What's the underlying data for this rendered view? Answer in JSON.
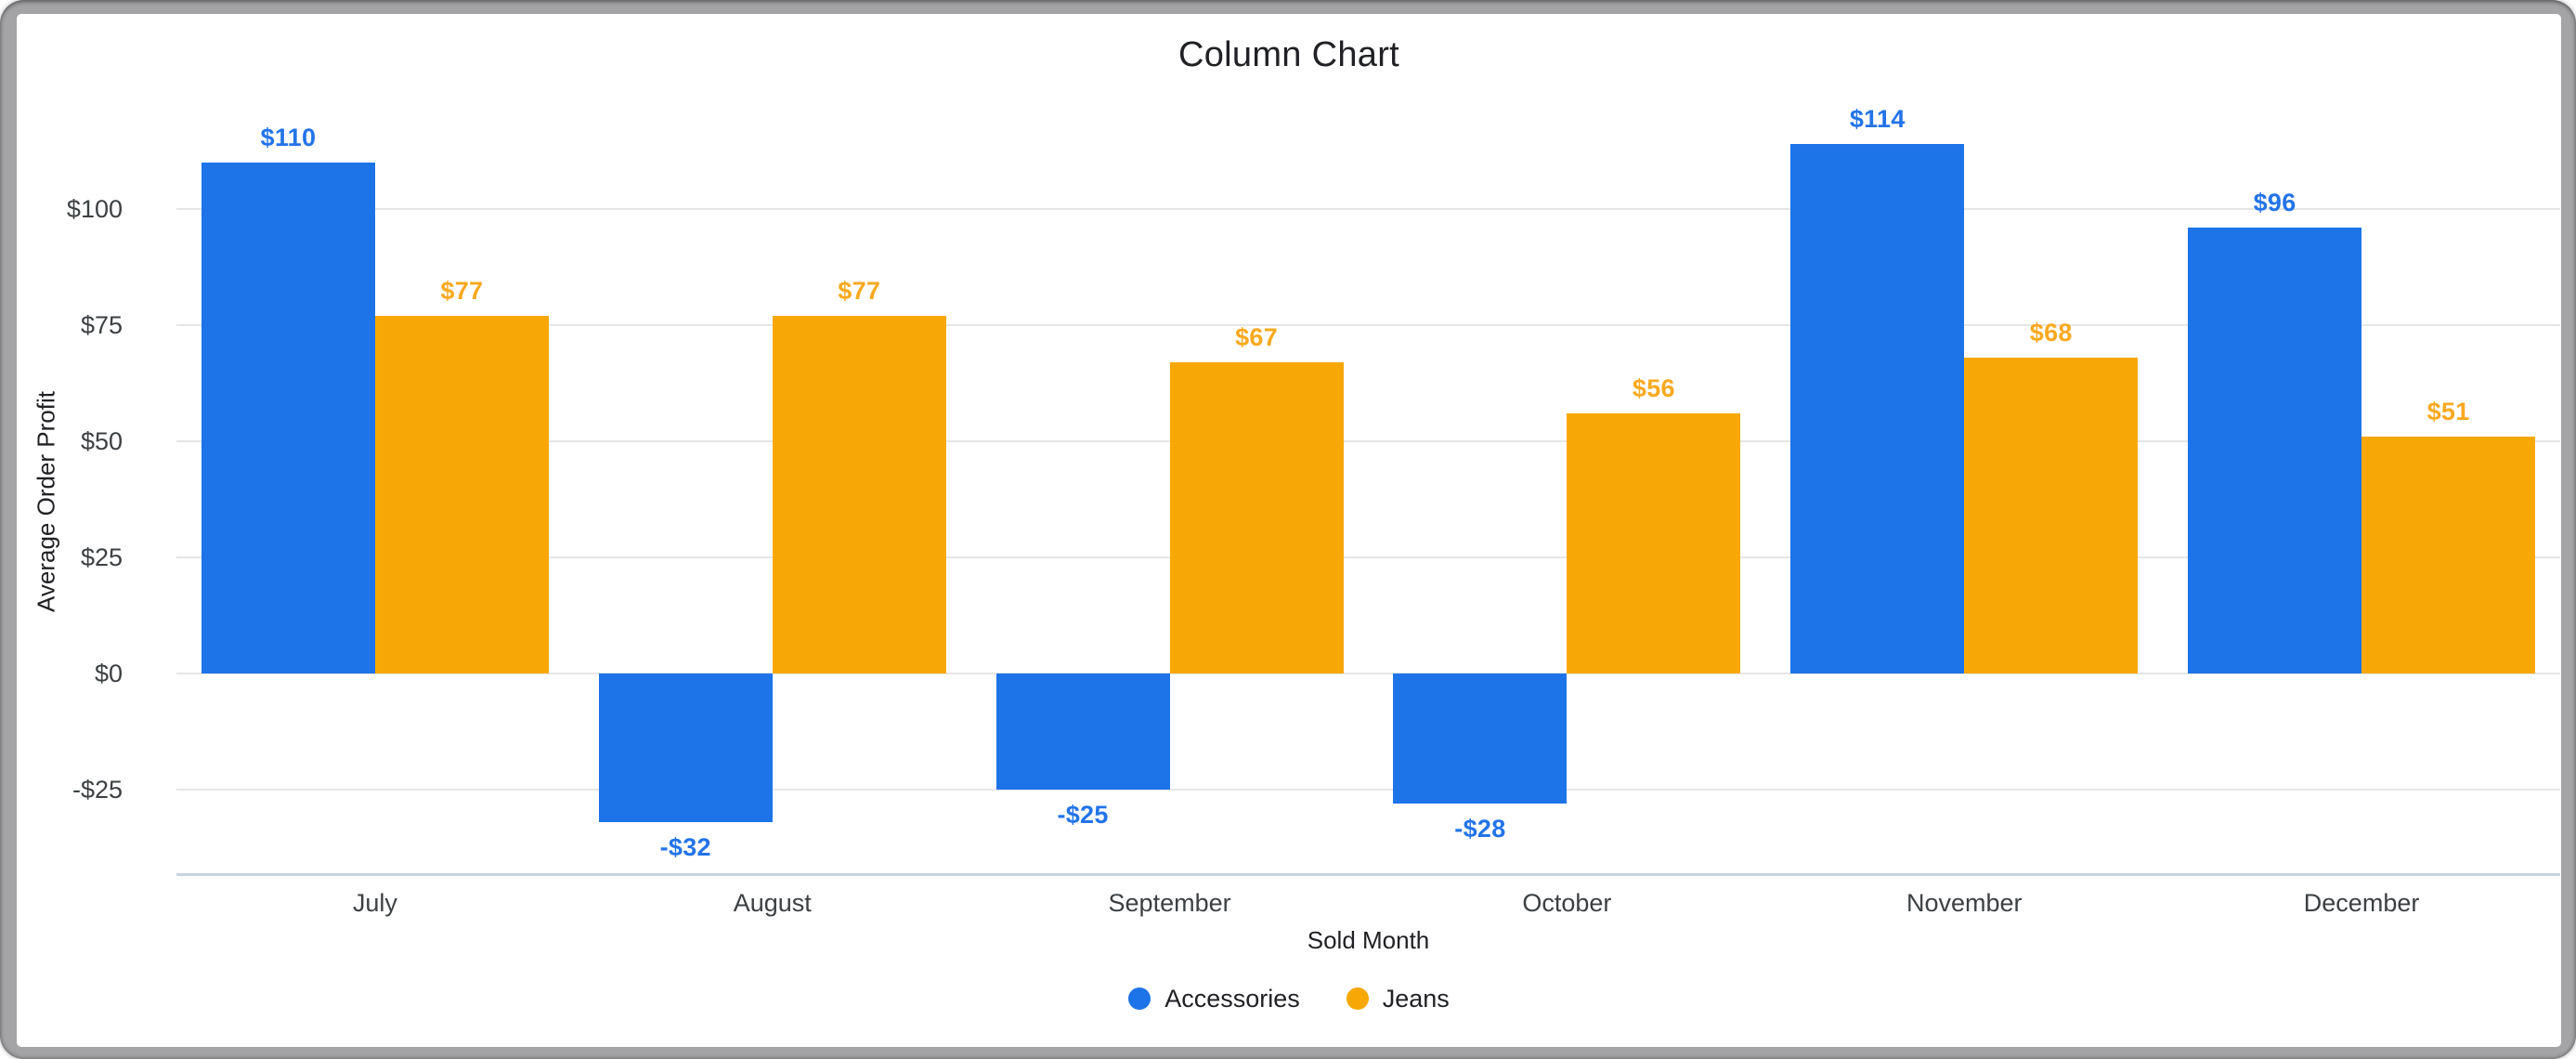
{
  "frame": {
    "color": "#A4A4A7"
  },
  "chart_data": {
    "type": "bar",
    "title": "Column Chart",
    "xlabel": "Sold Month",
    "ylabel": "Average Order Profit",
    "categories": [
      "July",
      "August",
      "September",
      "October",
      "November",
      "December"
    ],
    "series": [
      {
        "name": "Accessories",
        "color": "#1D73E8",
        "label_color": "#2374E8",
        "values": [
          110,
          -32,
          -25,
          -28,
          114,
          96
        ],
        "labels": [
          "$110",
          "-$32",
          "-$25",
          "-$28",
          "$114",
          "$96"
        ]
      },
      {
        "name": "Jeans",
        "color": "#F7A804",
        "label_color": "#F9A91F",
        "values": [
          77,
          77,
          67,
          56,
          68,
          51
        ],
        "labels": [
          "$77",
          "$77",
          "$67",
          "$56",
          "$68",
          "$51"
        ]
      }
    ],
    "y_ticks": [
      {
        "value": 100,
        "label": "$100"
      },
      {
        "value": 75,
        "label": "$75"
      },
      {
        "value": 50,
        "label": "$50"
      },
      {
        "value": 25,
        "label": "$25"
      },
      {
        "value": 0,
        "label": "$0"
      },
      {
        "value": -25,
        "label": "-$25"
      }
    ],
    "ylim": [
      -43.2,
      117
    ],
    "grid": true,
    "grid_color": "#E6E6E6",
    "baseline_color": "#C9D3E0",
    "legend_position": "bottom"
  }
}
